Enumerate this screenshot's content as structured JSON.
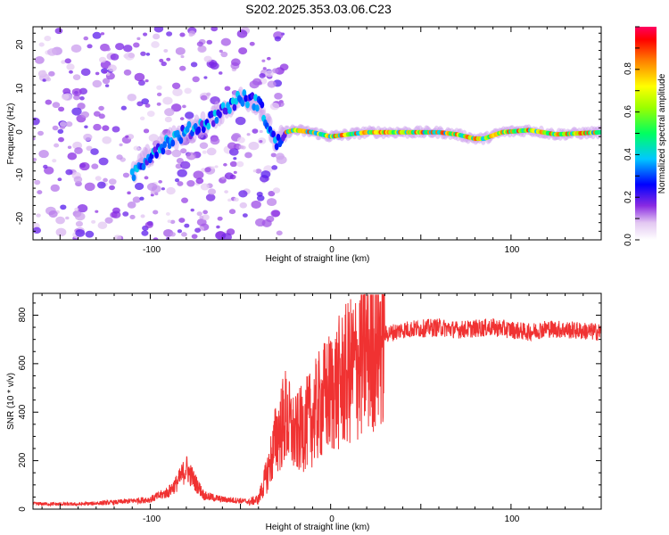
{
  "title": "S202.2025.353.03.06.C23",
  "colors": {
    "snr_line": "#f03232",
    "axis": "#000000"
  },
  "spectrogram": {
    "xlabel": "Height of straight line (km)",
    "ylabel": "Frequency (Hz)",
    "xlim": [
      -165,
      150
    ],
    "ylim": [
      -25,
      24.5
    ],
    "x_ticks": [
      "-100",
      "0",
      "100"
    ],
    "y_ticks": [
      "-20",
      "-10",
      "0",
      "10",
      "20"
    ],
    "colorbar": {
      "label": "Normalized spectral amplitude",
      "range": [
        0,
        1
      ],
      "ticks": [
        "0.0",
        "0.2",
        "0.4",
        "0.6",
        "0.8"
      ]
    }
  },
  "chart_data": [
    {
      "type": "heatmap",
      "title": "S202.2025.353.03.06.C23",
      "xlabel": "Height of straight line (km)",
      "ylabel": "Frequency (Hz)",
      "xlim": [
        -165,
        150
      ],
      "ylim": [
        -25,
        24.5
      ],
      "ridge": {
        "description": "dominant spectral ridge (approximate frequency vs height)",
        "x": [
          -110,
          -100,
          -90,
          -80,
          -70,
          -60,
          -50,
          -40,
          -30,
          -25,
          -20,
          -10,
          0,
          20,
          40,
          60,
          70,
          80,
          85,
          95,
          110,
          125,
          150
        ],
        "y": [
          -10,
          -5,
          -2,
          0,
          2,
          5,
          8,
          7,
          -3,
          0,
          0.5,
          0,
          -1,
          0,
          0,
          0,
          -0.5,
          -1.5,
          -1.5,
          0,
          0.5,
          -0.5,
          0
        ]
      },
      "colorbar": {
        "label": "Normalized spectral amplitude",
        "range": [
          0,
          1
        ]
      }
    },
    {
      "type": "line",
      "xlabel": "Height of straight line (km)",
      "ylabel": "SNR (10 * v/v)",
      "xlim": [
        -165,
        150
      ],
      "ylim": [
        0,
        890
      ],
      "x_ticks": [
        "-100",
        "0",
        "100"
      ],
      "y_ticks": [
        "0",
        "200",
        "400",
        "600",
        "800"
      ],
      "series": [
        {
          "name": "SNR",
          "x": [
            -165,
            -140,
            -120,
            -100,
            -90,
            -85,
            -80,
            -75,
            -70,
            -60,
            -50,
            -45,
            -40,
            -35,
            -30,
            -25,
            -20,
            -15,
            -10,
            -5,
            0,
            5,
            10,
            15,
            20,
            25,
            30,
            40,
            50,
            60,
            70,
            80,
            90,
            100,
            110,
            120,
            130,
            150
          ],
          "values": [
            22,
            20,
            28,
            40,
            70,
            110,
            170,
            110,
            55,
            40,
            35,
            30,
            40,
            150,
            300,
            380,
            300,
            340,
            380,
            440,
            480,
            520,
            560,
            600,
            650,
            700,
            720,
            740,
            745,
            750,
            740,
            745,
            750,
            740,
            730,
            745,
            740,
            730
          ]
        }
      ]
    }
  ],
  "snr": {
    "xlabel": "Height of straight line (km)",
    "ylabel": "SNR (10 * v/v)",
    "x_ticks": [
      "-100",
      "0",
      "100"
    ],
    "y_ticks": [
      "0",
      "200",
      "400",
      "600",
      "800"
    ]
  }
}
